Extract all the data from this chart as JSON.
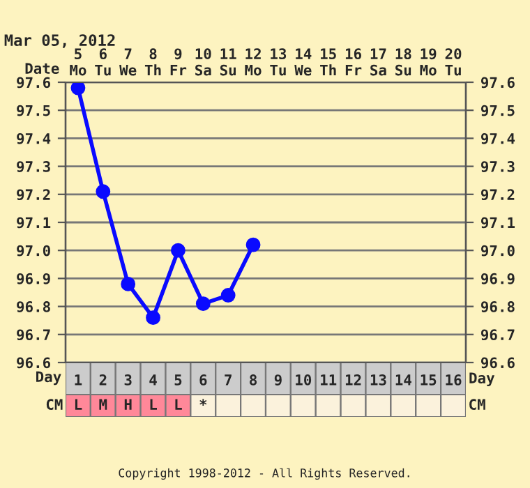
{
  "chart_data": [
    {
      "type": "line",
      "title": "Mar 05, 2012",
      "xlabel": "Day",
      "x2label": "Date",
      "x": [
        1,
        2,
        3,
        4,
        5,
        6,
        7,
        8
      ],
      "series": [
        {
          "color": "#0a0aff",
          "values": [
            97.58,
            97.21,
            96.88,
            96.76,
            97.0,
            96.81,
            96.84,
            97.02
          ]
        }
      ],
      "xlim": [
        0.5,
        16.5
      ],
      "xticks": [
        1,
        2,
        3,
        4,
        5,
        6,
        7,
        8,
        9,
        10,
        11,
        12,
        13,
        14,
        15,
        16
      ],
      "x2lim": [
        4.5,
        20.5
      ],
      "x2ticks": [
        {
          "value": 5,
          "label": "5\nMo"
        },
        {
          "value": 6,
          "label": "6\nTu"
        },
        {
          "value": 7,
          "label": "7\nWe"
        },
        {
          "value": 8,
          "label": "8\nTh"
        },
        {
          "value": 9,
          "label": "9\nFr"
        },
        {
          "value": 10,
          "label": "10\nSa"
        },
        {
          "value": 11,
          "label": "11\nSu"
        },
        {
          "value": 12,
          "label": "12\nMo"
        },
        {
          "value": 13,
          "label": "13\nTu"
        },
        {
          "value": 14,
          "label": "14\nWe"
        },
        {
          "value": 15,
          "label": "15\nTh"
        },
        {
          "value": 16,
          "label": "16\nFr"
        },
        {
          "value": 17,
          "label": "17\nSa"
        },
        {
          "value": 18,
          "label": "18\nSu"
        },
        {
          "value": 19,
          "label": "19\nMo"
        },
        {
          "value": 20,
          "label": "20\nTu"
        }
      ],
      "ylim": [
        96.6,
        97.6
      ],
      "yticks": [
        96.6,
        96.7,
        96.8,
        96.9,
        {
          "value": 97,
          "label": "97.0"
        },
        97.1,
        97.2,
        97.3,
        97.4,
        97.5,
        97.6
      ],
      "y2lim": [
        96.6,
        97.6
      ],
      "y2ticks": [
        96.6,
        96.7,
        96.8,
        96.9,
        {
          "value": 97,
          "label": "97.0"
        },
        97.1,
        97.2,
        97.3,
        97.4,
        97.5,
        97.6
      ],
      "grid": true,
      "marker": "circle",
      "line_style": "solid"
    },
    {
      "type": "other",
      "annotations": [
        "CM"
      ],
      "cell_labels": [
        [
          "L",
          "M",
          "H",
          "L",
          "L",
          "*",
          null,
          null,
          null,
          null,
          null,
          null,
          null,
          null,
          null,
          null
        ]
      ],
      "colors": [
        "#ff8899",
        "#ff8899",
        "#ff8899",
        "#ff8899",
        "#ff8899",
        "#fbf2dc",
        "#fbf2dc",
        "#fbf2dc",
        "#fbf2dc",
        "#fbf2dc",
        "#fbf2dc",
        "#fbf2dc",
        "#fbf2dc",
        "#fbf2dc",
        "#fbf2dc",
        "#fbf2dc"
      ]
    },
    {
      "type": "other",
      "annotations": [
        "Copyright 1998-2012 - All Rights Reserved."
      ]
    }
  ]
}
